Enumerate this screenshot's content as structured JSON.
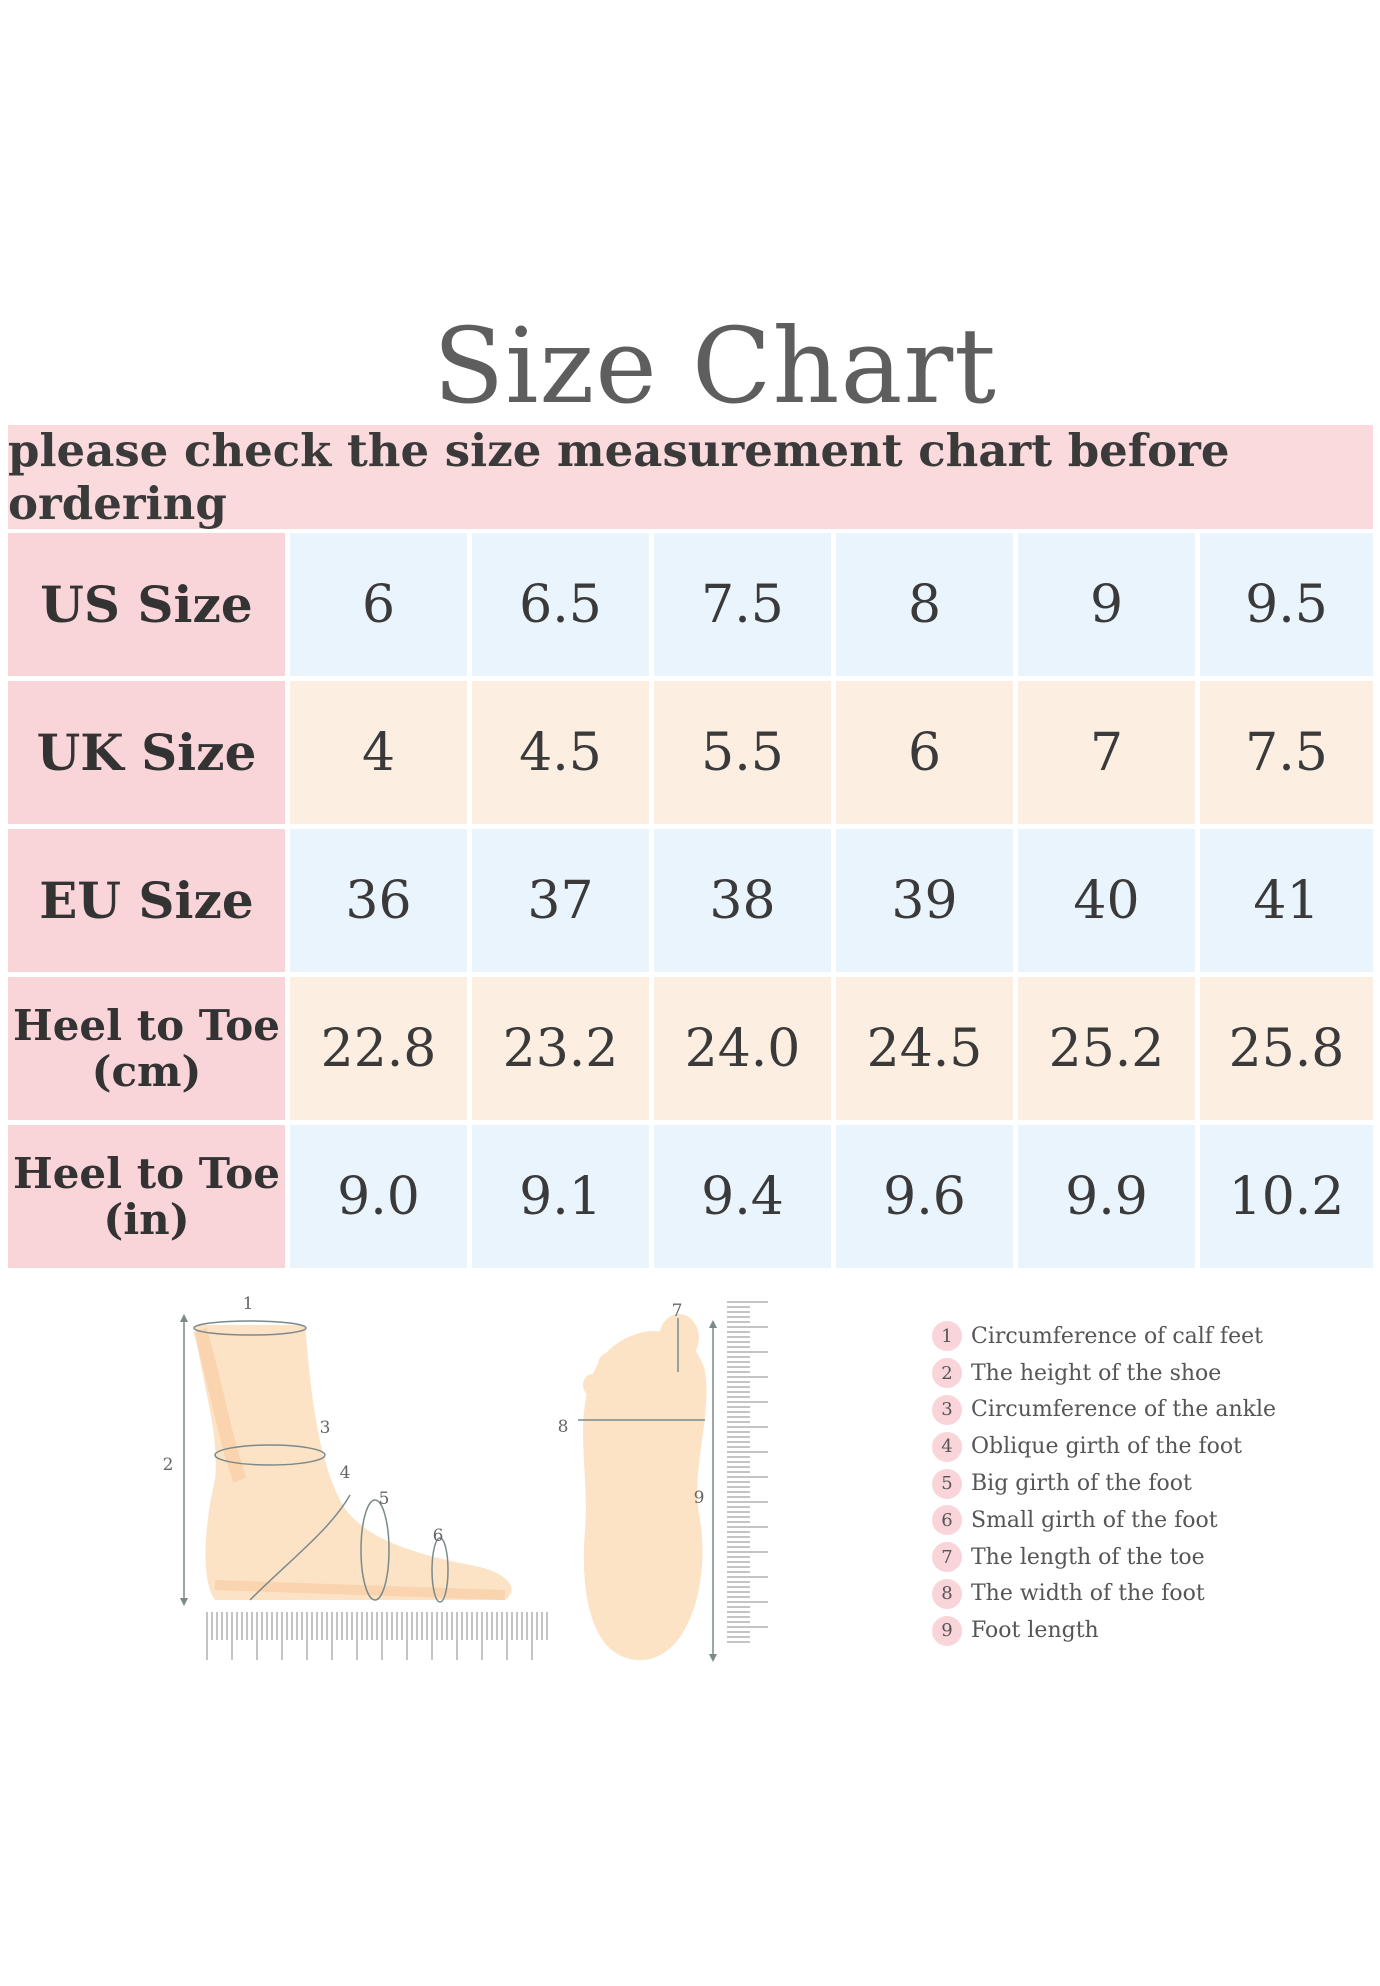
{
  "title": "Size  Chart",
  "banner": "please check the size measurement chart before ordering",
  "rows": [
    {
      "label": "US Size",
      "values": [
        "6",
        "6.5",
        "7.5",
        "8",
        "9",
        "9.5"
      ],
      "bg": "#eaf4fd"
    },
    {
      "label": "UK Size",
      "values": [
        "4",
        "4.5",
        "5.5",
        "6",
        "7",
        "7.5"
      ],
      "bg": "#fdeee2"
    },
    {
      "label": "EU Size",
      "values": [
        "36",
        "37",
        "38",
        "39",
        "40",
        "41"
      ],
      "bg": "#eaf4fd"
    },
    {
      "label": "Heel to Toe\n(cm)",
      "values": [
        "22.8",
        "23.2",
        "24.0",
        "24.5",
        "25.2",
        "25.8"
      ],
      "bg": "#fdeee2"
    },
    {
      "label": "Heel to Toe\n(in)",
      "values": [
        "9.0",
        "9.1",
        "9.4",
        "9.6",
        "9.9",
        "10.2"
      ],
      "bg": "#eaf4fd"
    }
  ],
  "diagram_numbers": [
    "1",
    "2",
    "3",
    "4",
    "5",
    "6",
    "7",
    "8",
    "9"
  ],
  "legend": [
    {
      "num": "1",
      "text": "Circumference of calf feet"
    },
    {
      "num": "2",
      "text": "The height of the shoe"
    },
    {
      "num": "3",
      "text": "Circumference of the ankle"
    },
    {
      "num": "4",
      "text": "Oblique girth of the foot"
    },
    {
      "num": "5",
      "text": "Big girth of the foot"
    },
    {
      "num": "6",
      "text": "Small girth of the foot"
    },
    {
      "num": "7",
      "text": "The length of the toe"
    },
    {
      "num": "8",
      "text": "The width of the foot"
    },
    {
      "num": "9",
      "text": "Foot length"
    }
  ],
  "colors": {
    "header_pink": "#f9d5d9",
    "cell_blue": "#eaf4fd",
    "cell_peach": "#fdeee2",
    "skin": "#fde3c6"
  }
}
